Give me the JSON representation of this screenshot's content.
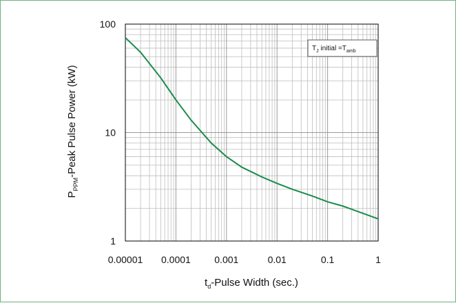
{
  "chart_data": {
    "type": "line",
    "x_scale": "log",
    "y_scale": "log",
    "xlim": [
      1e-05,
      1
    ],
    "ylim": [
      1,
      100
    ],
    "grid": true,
    "x_ticks": [
      {
        "value": 1e-05,
        "label": "0.00001"
      },
      {
        "value": 0.0001,
        "label": "0.0001"
      },
      {
        "value": 0.001,
        "label": "0.001"
      },
      {
        "value": 0.01,
        "label": "0.01"
      },
      {
        "value": 0.1,
        "label": "0.1"
      },
      {
        "value": 1,
        "label": "1"
      }
    ],
    "y_ticks": [
      {
        "value": 1,
        "label": "1"
      },
      {
        "value": 10,
        "label": "10"
      },
      {
        "value": 100,
        "label": "100"
      }
    ],
    "xlabel": {
      "main": "t",
      "sub": "d",
      "rest": "-Pulse Width (sec.)"
    },
    "ylabel": {
      "main": "P",
      "sub": "PPM",
      "rest": "-Peak Pulse Power (kW)"
    },
    "annotation": {
      "t": "T",
      "sub1": "J",
      "mid": " initial =T",
      "sub2": "amb"
    },
    "line_color": "#1a8a4a",
    "series": [
      {
        "x": [
          1e-05,
          2e-05,
          5e-05,
          0.0001,
          0.0002,
          0.0005,
          0.001,
          0.002,
          0.005,
          0.01,
          0.02,
          0.05,
          0.1,
          0.2,
          0.5,
          1
        ],
        "y": [
          75,
          55,
          32,
          20,
          13,
          8,
          6,
          4.8,
          3.9,
          3.4,
          3.0,
          2.6,
          2.3,
          2.1,
          1.8,
          1.6
        ]
      }
    ]
  }
}
